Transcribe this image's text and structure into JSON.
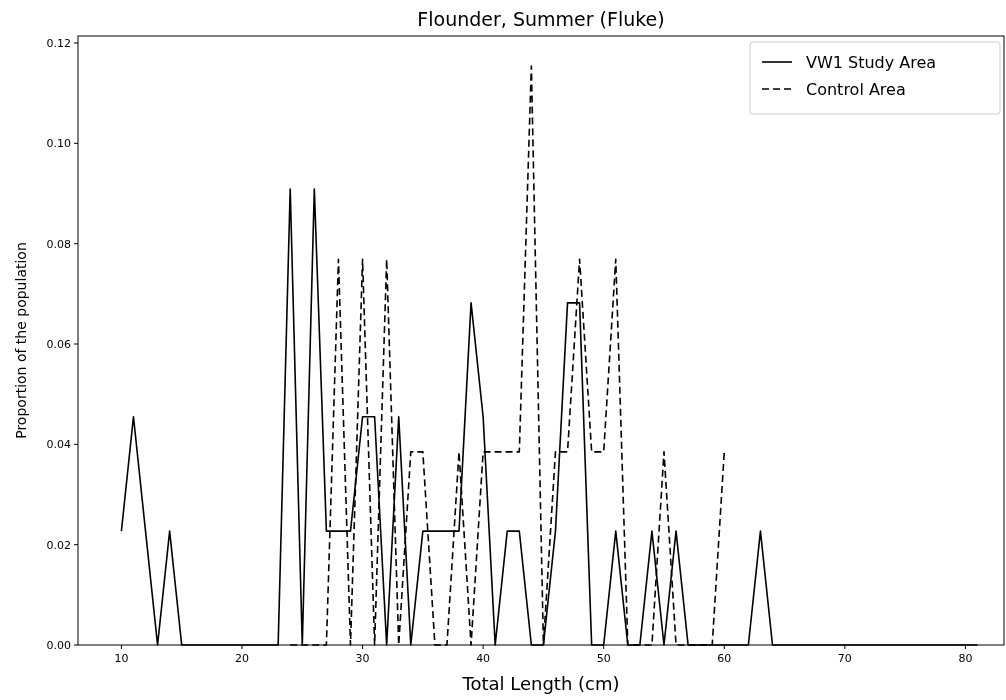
{
  "chart_data": {
    "type": "line",
    "title": "Flounder, Summer (Fluke)",
    "xlabel": "Total Length (cm)",
    "ylabel": "Proportion of the population",
    "xlim": [
      6.4,
      83.2
    ],
    "xticks": [
      10,
      20,
      30,
      40,
      50,
      60,
      70,
      80
    ],
    "ylim": [
      0,
      0.1214
    ],
    "yticks": [
      {
        "value": 0,
        "label": "0.00"
      },
      {
        "value": 0.02,
        "label": "0.02"
      },
      {
        "value": 0.04,
        "label": "0.04"
      },
      {
        "value": 0.06,
        "label": "0.06"
      },
      {
        "value": 0.08,
        "label": "0.08"
      },
      {
        "value": 0.1,
        "label": "0.10"
      },
      {
        "value": 0.12,
        "label": "0.12"
      }
    ],
    "legend": "top right",
    "grid": false,
    "series": [
      {
        "name": "VW1 Study Area",
        "color": "#000000",
        "line_style": "solid",
        "x": [
          10,
          11,
          12,
          13,
          14,
          15,
          16,
          17,
          18,
          19,
          20,
          21,
          22,
          23,
          24,
          25,
          26,
          27,
          28,
          29,
          30,
          31,
          32,
          33,
          34,
          35,
          36,
          37,
          38,
          39,
          40,
          41,
          42,
          43,
          44,
          45,
          46,
          47,
          48,
          49,
          50,
          51,
          52,
          53,
          54,
          55,
          56,
          57,
          58,
          59,
          60,
          61,
          62,
          63,
          64,
          65,
          66,
          67,
          68,
          69,
          70,
          71,
          72,
          73,
          74,
          75,
          76,
          77,
          78,
          79,
          80,
          81
        ],
        "values": [
          0.0227,
          0.0455,
          0.0227,
          0,
          0.0227,
          0,
          0,
          0,
          0,
          0,
          0,
          0,
          0,
          0,
          0.0909,
          0,
          0.0909,
          0.0227,
          0.0227,
          0.0227,
          0.0455,
          0.0455,
          0,
          0.0455,
          0,
          0.0227,
          0.0227,
          0.0227,
          0.0227,
          0.0682,
          0.0455,
          0,
          0.0227,
          0.0227,
          0,
          0,
          0.0227,
          0.0682,
          0.0682,
          0,
          0,
          0.0227,
          0,
          0,
          0.0227,
          0,
          0.0227,
          0,
          0,
          0,
          0,
          0,
          0,
          0.0227,
          0,
          0,
          0,
          0,
          0,
          0,
          0,
          0,
          0,
          0,
          0,
          0,
          0,
          0,
          0,
          0,
          0,
          0
        ]
      },
      {
        "name": "Control Area",
        "color": "#000000",
        "line_style": "dashed",
        "x": [
          24,
          25,
          26,
          27,
          28,
          29,
          30,
          31,
          32,
          33,
          34,
          35,
          36,
          37,
          38,
          39,
          40,
          41,
          42,
          43,
          44,
          45,
          46,
          47,
          48,
          49,
          50,
          51,
          52,
          53,
          54,
          55,
          56,
          57,
          58,
          59,
          60
        ],
        "values": [
          0,
          0,
          0,
          0,
          0.0769,
          0,
          0.0769,
          0,
          0.0769,
          0,
          0.0385,
          0.0385,
          0,
          0,
          0.0385,
          0,
          0.0385,
          0.0385,
          0.0385,
          0.0385,
          0.1154,
          0,
          0.0385,
          0.0385,
          0.0769,
          0.0385,
          0.0385,
          0.0769,
          0,
          0,
          0,
          0.0385,
          0,
          0,
          0,
          0,
          0.0385
        ]
      }
    ]
  }
}
